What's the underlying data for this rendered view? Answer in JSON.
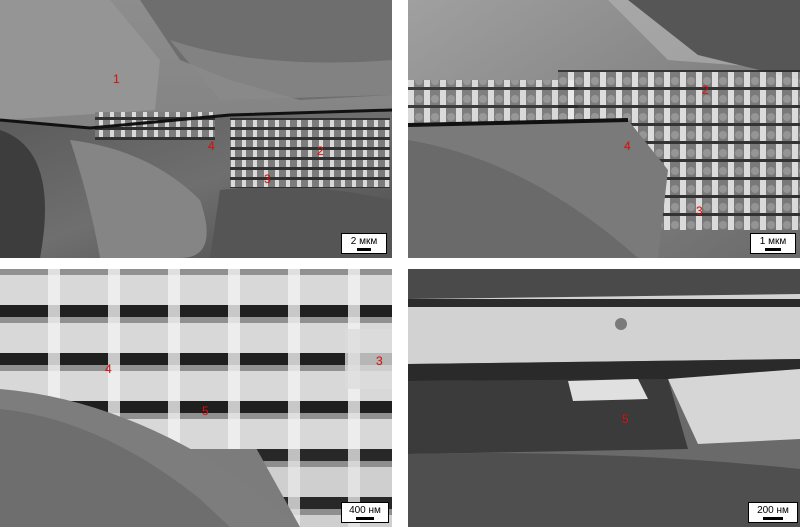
{
  "panels": [
    {
      "id": "a",
      "labels": [
        "1",
        "2",
        "3",
        "4"
      ],
      "scale": "2 мкм"
    },
    {
      "id": "b",
      "labels": [
        "2",
        "3",
        "4"
      ],
      "scale": "1 мкм"
    },
    {
      "id": "c",
      "labels": [
        "3",
        "4",
        "5"
      ],
      "scale": "400 нм"
    },
    {
      "id": "d",
      "labels": [
        "5"
      ],
      "scale": "200 нм"
    }
  ],
  "colors": {
    "label": "#e3120b",
    "scalebar_bg": "#ffffff",
    "scalebar_text": "#000000"
  }
}
